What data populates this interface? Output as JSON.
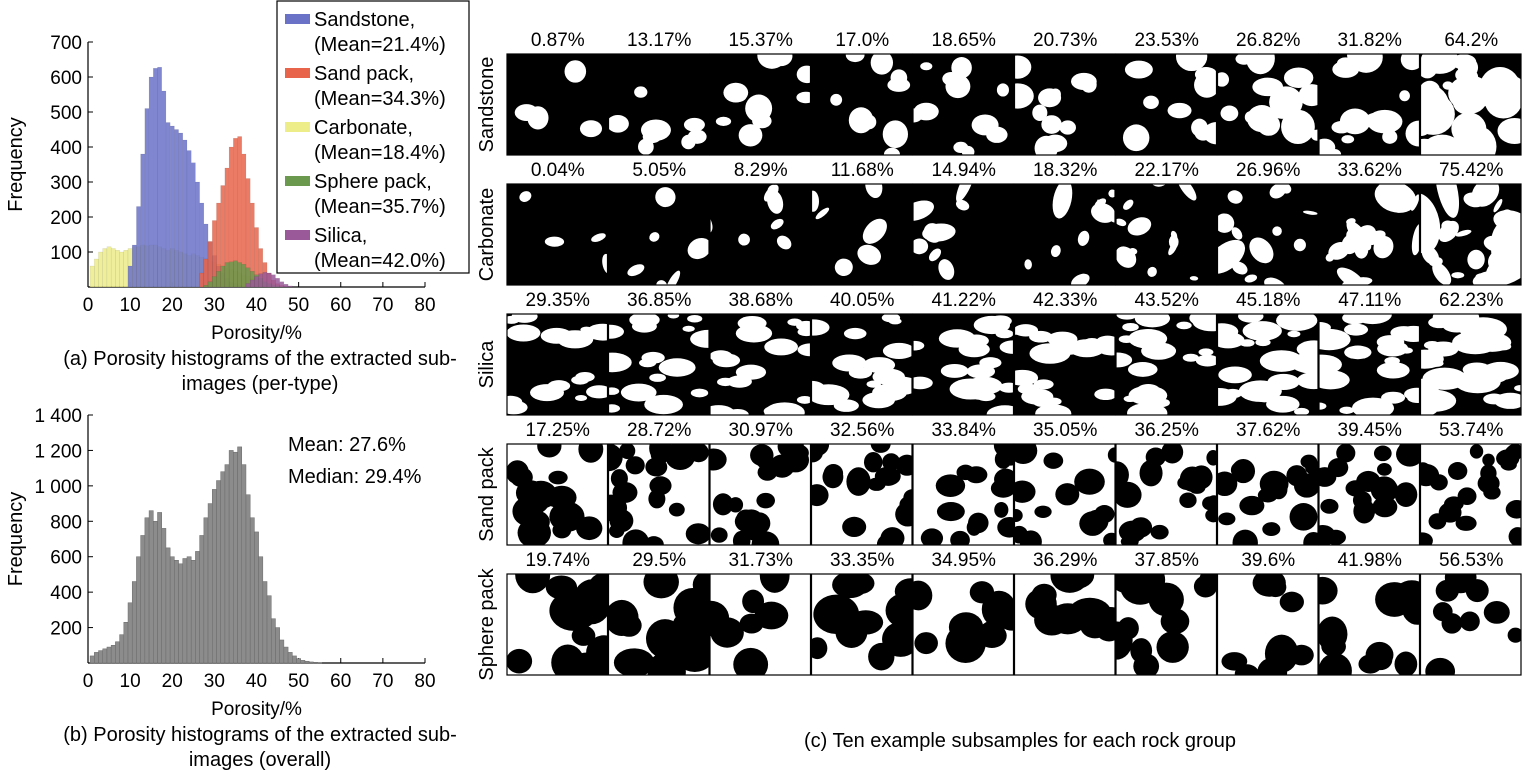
{
  "chart_data": [
    {
      "type": "bar",
      "panel": "a",
      "xlabel": "Porosity/%",
      "ylabel": "Frequency",
      "xlim": [
        0,
        80
      ],
      "ylim": [
        0,
        700
      ],
      "xticks": [
        "0",
        "10",
        "20",
        "30",
        "40",
        "50",
        "60",
        "70",
        "80"
      ],
      "yticks": [
        "100",
        "200",
        "300",
        "400",
        "500",
        "600",
        "700"
      ],
      "legend_position": "top-right",
      "series": [
        {
          "name": "Sandstone,",
          "mean_label": "(Mean=21.4%)",
          "color": "#6a72c8",
          "x": [
            10,
            11,
            12,
            13,
            14,
            15,
            16,
            17,
            18,
            19,
            20,
            21,
            22,
            23,
            24,
            25,
            26,
            27,
            28,
            29,
            30,
            31,
            32,
            33,
            34,
            35,
            36
          ],
          "values": [
            60,
            120,
            230,
            380,
            510,
            600,
            625,
            628,
            560,
            470,
            460,
            450,
            440,
            420,
            390,
            355,
            300,
            240,
            180,
            130,
            90,
            60,
            40,
            25,
            15,
            10,
            5
          ]
        },
        {
          "name": "Sand pack,",
          "mean_label": "(Mean=34.3%)",
          "color": "#e8644a",
          "x": [
            27,
            28,
            29,
            30,
            31,
            32,
            33,
            34,
            35,
            36,
            37,
            38,
            39,
            40,
            41,
            42,
            43,
            44,
            45,
            46
          ],
          "values": [
            40,
            80,
            130,
            190,
            240,
            290,
            340,
            400,
            425,
            430,
            380,
            310,
            240,
            170,
            110,
            70,
            40,
            20,
            10,
            5
          ]
        },
        {
          "name": "Carbonate,",
          "mean_label": "(Mean=18.4%)",
          "color": "#eded8a",
          "x": [
            1,
            2,
            3,
            4,
            5,
            6,
            7,
            8,
            9,
            10,
            11,
            12,
            13,
            14,
            15,
            16,
            17,
            18,
            19,
            20,
            21,
            22,
            23,
            24,
            25,
            26,
            27,
            28,
            29,
            30,
            31,
            32,
            33,
            34,
            35,
            36,
            37,
            38,
            39,
            40,
            41,
            42,
            43,
            44,
            45
          ],
          "values": [
            60,
            80,
            100,
            110,
            115,
            110,
            105,
            100,
            105,
            110,
            115,
            115,
            120,
            118,
            120,
            120,
            115,
            110,
            105,
            110,
            105,
            100,
            95,
            90,
            95,
            90,
            85,
            80,
            75,
            70,
            65,
            60,
            55,
            50,
            45,
            40,
            35,
            30,
            25,
            20,
            15,
            12,
            10,
            8,
            5
          ]
        },
        {
          "name": "Sphere pack,",
          "mean_label": "(Mean=35.7%)",
          "color": "#6b9a4e",
          "x": [
            28,
            29,
            30,
            31,
            32,
            33,
            34,
            35,
            36,
            37,
            38,
            39,
            40,
            41,
            42,
            43,
            44,
            45,
            46
          ],
          "values": [
            5,
            15,
            30,
            45,
            60,
            70,
            72,
            75,
            70,
            65,
            55,
            45,
            35,
            25,
            15,
            10,
            6,
            3,
            1
          ]
        },
        {
          "name": "Silica,",
          "mean_label": "(Mean=42.0%)",
          "color": "#9a5a9a",
          "x": [
            38,
            39,
            40,
            41,
            42,
            43,
            44,
            45,
            46,
            47,
            48
          ],
          "values": [
            10,
            20,
            30,
            38,
            42,
            40,
            35,
            25,
            15,
            8,
            3
          ]
        }
      ]
    },
    {
      "type": "bar",
      "panel": "b",
      "xlabel": "Porosity/%",
      "ylabel": "Frequency",
      "xlim": [
        0,
        80
      ],
      "ylim": [
        0,
        1400
      ],
      "xticks": [
        "0",
        "10",
        "20",
        "30",
        "40",
        "50",
        "60",
        "70",
        "80"
      ],
      "yticks": [
        "200",
        "400",
        "600",
        "800",
        "1 000",
        "1 200",
        "1 400"
      ],
      "annotations": [
        "Mean: 27.6%",
        "Median: 29.4%"
      ],
      "color": "#8c8c8c",
      "x": [
        1,
        2,
        3,
        4,
        5,
        6,
        7,
        8,
        9,
        10,
        11,
        12,
        13,
        14,
        15,
        16,
        17,
        18,
        19,
        20,
        21,
        22,
        23,
        24,
        25,
        26,
        27,
        28,
        29,
        30,
        31,
        32,
        33,
        34,
        35,
        36,
        37,
        38,
        39,
        40,
        41,
        42,
        43,
        44,
        45,
        46,
        47,
        48,
        49,
        50,
        51,
        52,
        53,
        54,
        55
      ],
      "values": [
        40,
        60,
        70,
        80,
        90,
        100,
        120,
        160,
        230,
        340,
        460,
        600,
        720,
        820,
        860,
        800,
        850,
        760,
        650,
        600,
        580,
        560,
        590,
        600,
        580,
        630,
        720,
        820,
        900,
        980,
        1030,
        1080,
        1120,
        1200,
        1190,
        1220,
        1120,
        950,
        820,
        740,
        600,
        460,
        380,
        250,
        200,
        130,
        90,
        60,
        40,
        25,
        15,
        10,
        6,
        4,
        2
      ]
    }
  ],
  "captions": {
    "a": "(a) Porosity histograms of the extracted sub-images (per-type)",
    "b": "(b) Porosity histograms of the extracted sub-images (overall)",
    "c": "(c) Ten example subsamples for each rock group"
  },
  "panel_c": {
    "rows": [
      {
        "label": "Sandstone",
        "kind": "sandstone",
        "porosities": [
          "0.87%",
          "13.17%",
          "15.37%",
          "17.0%",
          "18.65%",
          "20.73%",
          "23.53%",
          "26.82%",
          "31.82%",
          "64.2%"
        ],
        "fractions": [
          0.0087,
          0.1317,
          0.1537,
          0.17,
          0.1865,
          0.2073,
          0.2353,
          0.2682,
          0.3182,
          0.642
        ]
      },
      {
        "label": "Carbonate",
        "kind": "carbonate",
        "porosities": [
          "0.04%",
          "5.05%",
          "8.29%",
          "11.68%",
          "14.94%",
          "18.32%",
          "22.17%",
          "26.96%",
          "33.62%",
          "75.42%"
        ],
        "fractions": [
          0.0004,
          0.0505,
          0.0829,
          0.1168,
          0.1494,
          0.1832,
          0.2217,
          0.2696,
          0.3362,
          0.7542
        ]
      },
      {
        "label": "Silica",
        "kind": "silica",
        "porosities": [
          "29.35%",
          "36.85%",
          "38.68%",
          "40.05%",
          "41.22%",
          "42.33%",
          "43.52%",
          "45.18%",
          "47.11%",
          "62.23%"
        ],
        "fractions": [
          0.2935,
          0.3685,
          0.3868,
          0.4005,
          0.4122,
          0.4233,
          0.4352,
          0.4518,
          0.4711,
          0.6223
        ]
      },
      {
        "label": "Sand pack",
        "kind": "sandpack",
        "porosities": [
          "17.25%",
          "28.72%",
          "30.97%",
          "32.56%",
          "33.84%",
          "35.05%",
          "36.25%",
          "37.62%",
          "39.45%",
          "53.74%"
        ],
        "fractions": [
          0.1725,
          0.2872,
          0.3097,
          0.3256,
          0.3384,
          0.3505,
          0.3625,
          0.3762,
          0.3945,
          0.5374
        ]
      },
      {
        "label": "Sphere pack",
        "kind": "spherepack",
        "porosities": [
          "19.74%",
          "29.5%",
          "31.73%",
          "33.35%",
          "34.95%",
          "36.29%",
          "37.85%",
          "39.6%",
          "41.98%",
          "56.53%"
        ],
        "fractions": [
          0.1974,
          0.295,
          0.3173,
          0.3335,
          0.3495,
          0.3629,
          0.3785,
          0.396,
          0.4198,
          0.5653
        ]
      }
    ]
  }
}
